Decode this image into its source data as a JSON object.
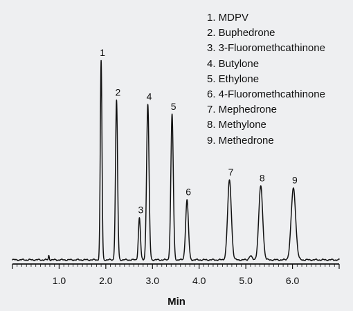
{
  "chart_data": {
    "type": "line",
    "title": "",
    "xlabel": "Min",
    "ylabel": "",
    "xlim": [
      0,
      7.0
    ],
    "ylim": [
      0,
      100
    ],
    "x_ticks": [
      1.0,
      2.0,
      3.0,
      4.0,
      5.0,
      6.0
    ],
    "x_tick_labels": [
      "1.0",
      "2.0",
      "3.0",
      "4.0",
      "5.0",
      "6.0"
    ],
    "grid": false,
    "legend_position": "top-right",
    "legend": [
      "1. MDPV",
      "2. Buphedrone",
      "3. 3-Fluoromethcathinone",
      "4. Butylone",
      "5. Ethylone",
      "6. 4-Fluoromethcathinone",
      "7. Mephedrone",
      "8. Methylone",
      "9. Methedrone"
    ],
    "peaks": [
      {
        "label": "1",
        "time": 1.9,
        "height": 100,
        "width": 0.018
      },
      {
        "label": "2",
        "time": 2.23,
        "height": 80,
        "width": 0.022
      },
      {
        "label": "3",
        "time": 2.72,
        "height": 21,
        "width": 0.022
      },
      {
        "label": "4",
        "time": 2.9,
        "height": 78,
        "width": 0.026
      },
      {
        "label": "5",
        "time": 3.42,
        "height": 73,
        "width": 0.026
      },
      {
        "label": "6",
        "time": 3.74,
        "height": 30,
        "width": 0.03
      },
      {
        "label": "7",
        "time": 4.65,
        "height": 40,
        "width": 0.04
      },
      {
        "label": "8",
        "time": 5.32,
        "height": 37,
        "width": 0.042
      },
      {
        "label": "9",
        "time": 6.02,
        "height": 36,
        "width": 0.048
      }
    ],
    "minor_peaks": [
      {
        "time": 0.78,
        "height": 2.2,
        "width": 0.01
      },
      {
        "time": 5.1,
        "height": 2.0,
        "width": 0.03
      }
    ]
  }
}
